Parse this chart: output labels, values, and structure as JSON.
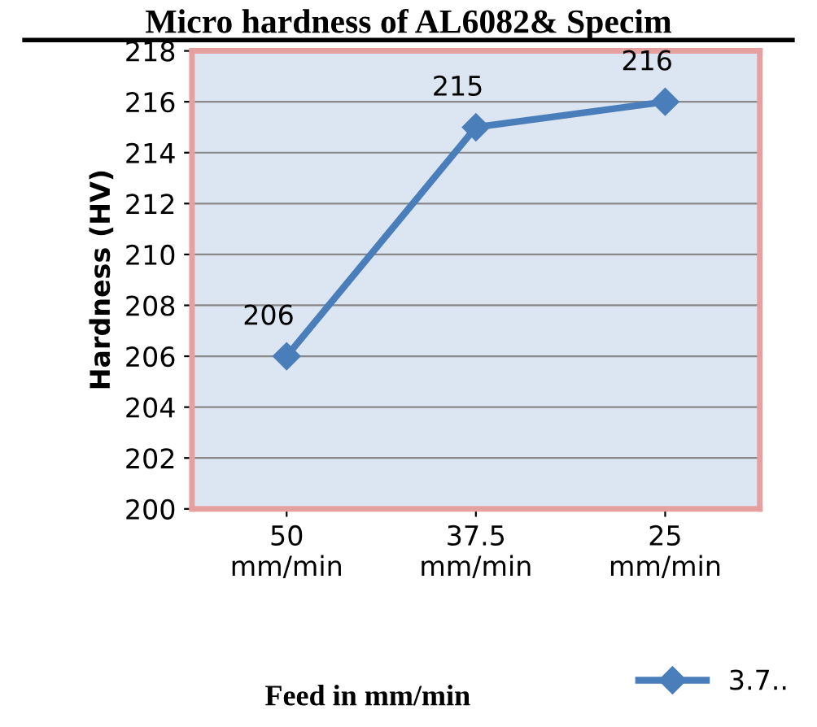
{
  "chart_data": {
    "type": "line",
    "title": "Micro hardness of AL6082& Specim",
    "xlabel": "Feed in mm/min",
    "ylabel": "Hardness (HV)",
    "categories": [
      "50\nmm/min",
      "37.5\nmm/min",
      "25\nmm/min"
    ],
    "series": [
      {
        "name": "3.7..",
        "color": "#4a7ebb",
        "values": [
          206,
          215,
          216
        ]
      }
    ],
    "ylim": [
      200,
      218
    ],
    "yticks": [
      200,
      202,
      204,
      206,
      208,
      210,
      212,
      214,
      216,
      218
    ],
    "grid": "y",
    "legend": "bottom right",
    "marker": "diamond",
    "line_style": "solid",
    "data_labels": true
  }
}
